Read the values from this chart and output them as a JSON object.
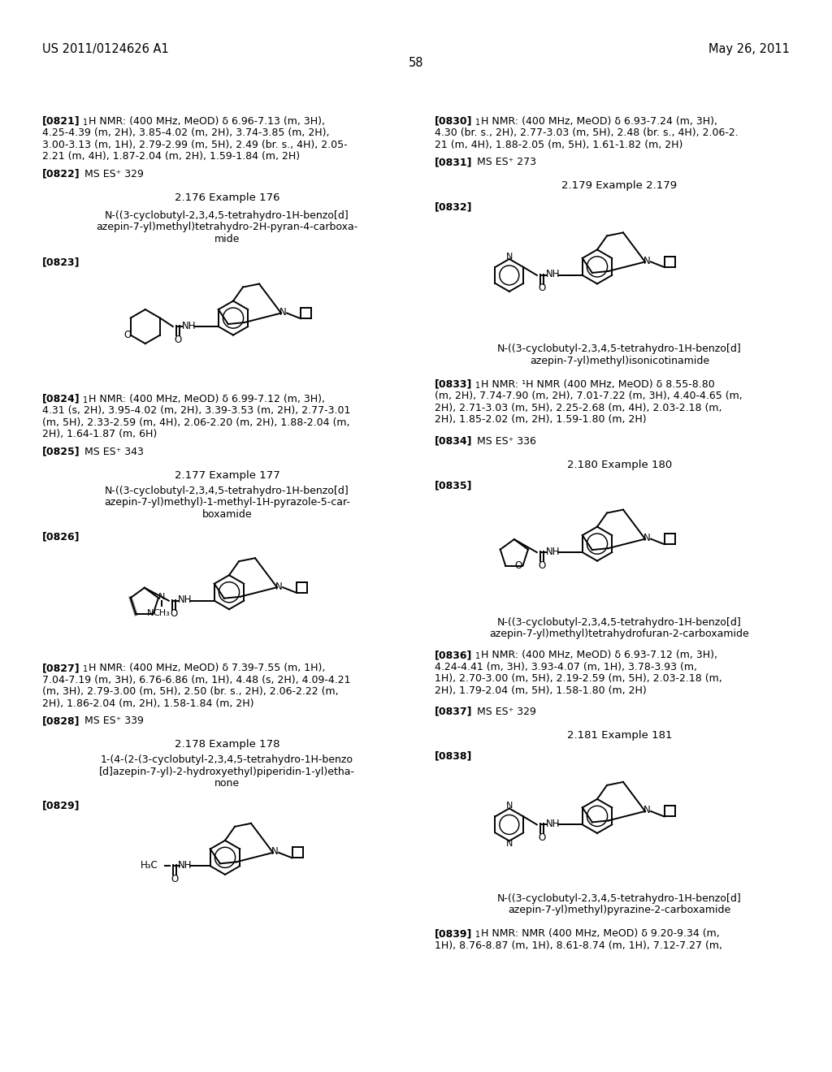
{
  "bg_color": "#ffffff",
  "page_number": "58",
  "header_left": "US 2011/0124626 A1",
  "header_right": "May 26, 2011"
}
